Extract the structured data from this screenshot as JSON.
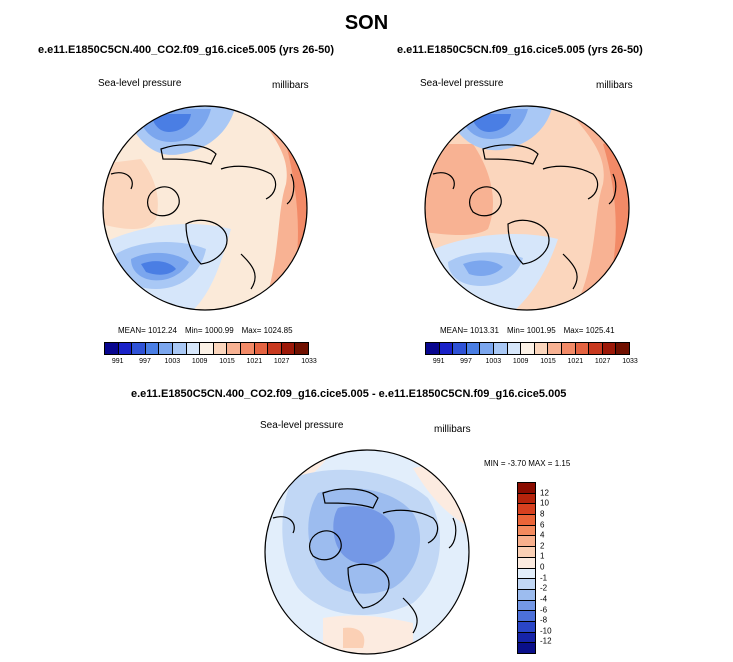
{
  "page": {
    "season_title": "SON"
  },
  "chart_data": [
    {
      "type": "heatmap",
      "title": "e.e11.E1850C5CN.400_CO2.f09_g16.cice5.005 (yrs 26-50)",
      "field_label": "Sea-level pressure",
      "units_label": "millibars",
      "mean_text": "MEAN= 1012.24",
      "min_text": "Min= 1000.99",
      "max_text": "Max= 1024.85",
      "colorbar": {
        "orientation": "horizontal",
        "tick_labels": [
          "991",
          "997",
          "1003",
          "1009",
          "1015",
          "1021",
          "1027",
          "1033"
        ],
        "colors": [
          "#08068f",
          "#1a22c8",
          "#2f52d6",
          "#4a7ee4",
          "#7ba6ee",
          "#a9c8f5",
          "#d6e6fa",
          "#fbf1e6",
          "#fbd6bd",
          "#f8b293",
          "#f28a67",
          "#e46341",
          "#c8391f",
          "#9c1808",
          "#701000"
        ]
      }
    },
    {
      "type": "heatmap",
      "title": "e.e11.E1850C5CN.f09_g16.cice5.005 (yrs 26-50)",
      "field_label": "Sea-level pressure",
      "units_label": "millibars",
      "mean_text": "MEAN= 1013.31",
      "min_text": "Min= 1001.95",
      "max_text": "Max= 1025.41",
      "colorbar": {
        "orientation": "horizontal",
        "tick_labels": [
          "991",
          "997",
          "1003",
          "1009",
          "1015",
          "1021",
          "1027",
          "1033"
        ],
        "colors": [
          "#08068f",
          "#1a22c8",
          "#2f52d6",
          "#4a7ee4",
          "#7ba6ee",
          "#a9c8f5",
          "#d6e6fa",
          "#fbf1e6",
          "#fbd6bd",
          "#f8b293",
          "#f28a67",
          "#e46341",
          "#c8391f",
          "#9c1808",
          "#701000"
        ]
      }
    },
    {
      "type": "heatmap",
      "title": "e.e11.E1850C5CN.400_CO2.f09_g16.cice5.005 - e.e11.E1850C5CN.f09_g16.cice5.005",
      "field_label": "Sea-level pressure",
      "units_label": "millibars",
      "min_max_text": "MIN =  -3.70 MAX =   1.15",
      "colorbar": {
        "orientation": "vertical",
        "tick_labels": [
          "12",
          "10",
          "8",
          "6",
          "4",
          "2",
          "1",
          "0",
          "-1",
          "-2",
          "-4",
          "-6",
          "-8",
          "-10",
          "-12"
        ],
        "colors": [
          "#8a0c00",
          "#b5240c",
          "#d6401f",
          "#ea6438",
          "#f38a5e",
          "#f8b08d",
          "#fbd0b5",
          "#fcebe0",
          "#e2eefb",
          "#c1d7f5",
          "#9cbcef",
          "#7498e6",
          "#4c70da",
          "#2a46c8",
          "#1624a8",
          "#0a0f8a"
        ]
      }
    }
  ]
}
